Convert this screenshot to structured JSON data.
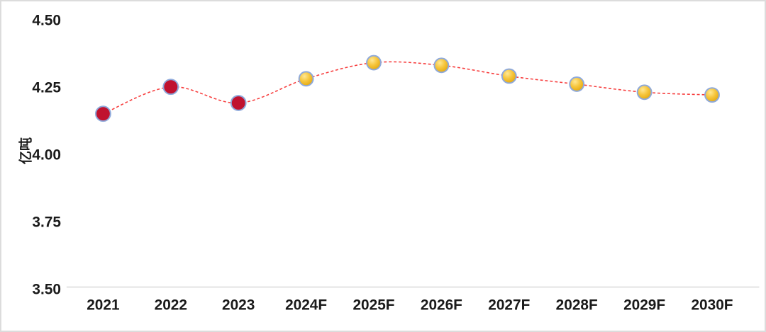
{
  "figure": {
    "background": "#ffffff",
    "frame_border_color": "#dcdcdc"
  },
  "chart_data": {
    "type": "line",
    "title": "",
    "xlabel": "",
    "ylabel": "亿吨",
    "categories": [
      "2021",
      "2022",
      "2023",
      "2024F",
      "2025F",
      "2026F",
      "2027F",
      "2028F",
      "2029F",
      "2030F"
    ],
    "values": [
      4.15,
      4.25,
      4.19,
      4.28,
      4.34,
      4.33,
      4.29,
      4.26,
      4.23,
      4.22
    ],
    "point_types": [
      "historical",
      "historical",
      "historical",
      "forecast",
      "forecast",
      "forecast",
      "forecast",
      "forecast",
      "forecast",
      "forecast"
    ],
    "ylim": [
      3.5,
      4.5
    ],
    "yticks": [
      3.5,
      3.75,
      4.0,
      4.25,
      4.5
    ],
    "ytick_labels": [
      "3.50",
      "3.75",
      "4.00",
      "4.25",
      "4.50"
    ],
    "grid": false,
    "legend": "none",
    "line": {
      "color": "#f73e3e",
      "style": "dashed",
      "smooth": true
    },
    "marker_styles": {
      "historical": {
        "fill": "#c0122f",
        "border": "#8ea9db"
      },
      "forecast": {
        "fill_light": "#ffe894",
        "fill_mid": "#f6c63e",
        "fill_dark": "#dfa104",
        "border": "#8ea9db"
      }
    },
    "axis_color": "#d9d9d9",
    "text_color": "#1a1a1a"
  }
}
